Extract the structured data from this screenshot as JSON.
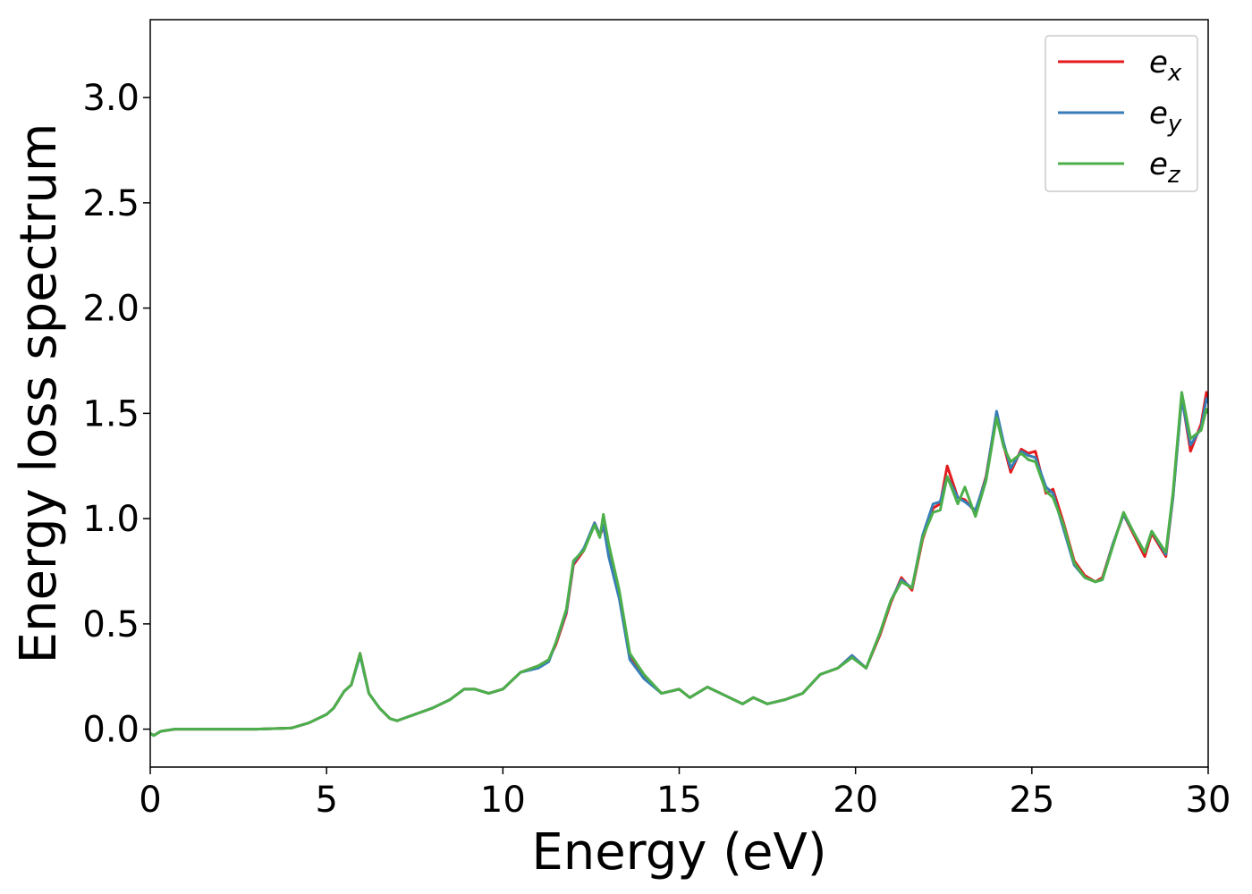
{
  "chart_data": {
    "type": "line",
    "xlabel": "Energy (eV)",
    "ylabel": "Energy loss spectrum",
    "x": [
      0,
      0.1,
      0.3,
      0.7,
      1,
      2,
      3,
      4,
      4.5,
      5,
      5.2,
      5.5,
      5.7,
      5.95,
      6.2,
      6.5,
      6.8,
      7,
      7.5,
      8,
      8.5,
      8.9,
      9.2,
      9.6,
      10,
      10.5,
      11,
      11.3,
      11.5,
      11.8,
      12,
      12.3,
      12.6,
      12.75,
      12.85,
      13,
      13.3,
      13.6,
      14,
      14.5,
      15,
      15.3,
      15.8,
      16.3,
      16.8,
      17.1,
      17.5,
      18,
      18.5,
      19,
      19.5,
      19.9,
      20.3,
      20.7,
      21,
      21.3,
      21.6,
      21.9,
      22.2,
      22.4,
      22.6,
      22.9,
      23.1,
      23.4,
      23.7,
      24,
      24.2,
      24.4,
      24.7,
      24.9,
      25.1,
      25.4,
      25.6,
      25.9,
      26.2,
      26.5,
      26.8,
      27,
      27.3,
      27.6,
      27.9,
      28.2,
      28.4,
      28.8,
      29,
      29.25,
      29.5,
      29.8,
      29.95,
      30
    ],
    "series": [
      {
        "name": "ex",
        "color": "#e41a1c",
        "values": [
          -0.02,
          -0.03,
          -0.01,
          0,
          0,
          0,
          0,
          0.005,
          0.03,
          0.07,
          0.1,
          0.18,
          0.21,
          0.36,
          0.17,
          0.1,
          0.05,
          0.04,
          0.07,
          0.1,
          0.14,
          0.19,
          0.19,
          0.17,
          0.19,
          0.27,
          0.3,
          0.33,
          0.4,
          0.55,
          0.78,
          0.85,
          0.98,
          0.92,
          0.96,
          0.85,
          0.65,
          0.35,
          0.25,
          0.17,
          0.19,
          0.15,
          0.2,
          0.16,
          0.12,
          0.15,
          0.12,
          0.14,
          0.17,
          0.26,
          0.29,
          0.35,
          0.29,
          0.45,
          0.6,
          0.72,
          0.66,
          0.9,
          1.05,
          1.07,
          1.25,
          1.1,
          1.09,
          1.03,
          1.2,
          1.5,
          1.35,
          1.22,
          1.33,
          1.31,
          1.32,
          1.12,
          1.14,
          0.98,
          0.8,
          0.73,
          0.7,
          0.72,
          0.88,
          1.02,
          0.92,
          0.82,
          0.93,
          0.82,
          1.1,
          1.58,
          1.32,
          1.45,
          1.6,
          1.55
        ]
      },
      {
        "name": "ey",
        "color": "#377eb8",
        "values": [
          -0.02,
          -0.03,
          -0.01,
          0,
          0,
          0,
          0,
          0.005,
          0.03,
          0.07,
          0.1,
          0.18,
          0.21,
          0.35,
          0.17,
          0.1,
          0.05,
          0.04,
          0.07,
          0.1,
          0.14,
          0.19,
          0.19,
          0.17,
          0.19,
          0.27,
          0.29,
          0.32,
          0.41,
          0.56,
          0.79,
          0.86,
          0.98,
          0.92,
          0.97,
          0.82,
          0.62,
          0.33,
          0.24,
          0.17,
          0.19,
          0.15,
          0.2,
          0.16,
          0.12,
          0.15,
          0.12,
          0.14,
          0.17,
          0.26,
          0.29,
          0.35,
          0.29,
          0.46,
          0.61,
          0.71,
          0.67,
          0.92,
          1.07,
          1.08,
          1.2,
          1.1,
          1.08,
          1.04,
          1.19,
          1.51,
          1.36,
          1.24,
          1.32,
          1.3,
          1.29,
          1.15,
          1.12,
          0.95,
          0.78,
          0.72,
          0.7,
          0.71,
          0.88,
          1.02,
          0.93,
          0.84,
          0.94,
          0.83,
          1.1,
          1.57,
          1.35,
          1.43,
          1.57,
          1.55
        ]
      },
      {
        "name": "ez",
        "color": "#4daf4a",
        "values": [
          -0.02,
          -0.03,
          -0.01,
          0,
          0,
          0,
          0,
          0.005,
          0.03,
          0.07,
          0.1,
          0.18,
          0.21,
          0.36,
          0.17,
          0.1,
          0.05,
          0.04,
          0.07,
          0.1,
          0.14,
          0.19,
          0.19,
          0.17,
          0.19,
          0.27,
          0.3,
          0.33,
          0.41,
          0.57,
          0.8,
          0.85,
          0.97,
          0.91,
          1.02,
          0.88,
          0.66,
          0.36,
          0.26,
          0.17,
          0.19,
          0.15,
          0.2,
          0.16,
          0.12,
          0.15,
          0.12,
          0.14,
          0.17,
          0.26,
          0.29,
          0.34,
          0.29,
          0.46,
          0.61,
          0.7,
          0.67,
          0.91,
          1.03,
          1.04,
          1.2,
          1.07,
          1.15,
          1.01,
          1.18,
          1.48,
          1.34,
          1.27,
          1.31,
          1.28,
          1.27,
          1.13,
          1.1,
          0.97,
          0.79,
          0.72,
          0.7,
          0.71,
          0.87,
          1.03,
          0.93,
          0.84,
          0.94,
          0.84,
          1.12,
          1.6,
          1.38,
          1.42,
          1.52,
          1.5
        ]
      }
    ],
    "xlim": [
      0,
      30
    ],
    "xticks": [
      0,
      5,
      10,
      15,
      20,
      25,
      30
    ],
    "ylim": [
      -0.18,
      3.37
    ],
    "yticks": [
      {
        "value": 0,
        "label": "0.0"
      },
      0.5,
      {
        "value": 1,
        "label": "1.0"
      },
      1.5,
      {
        "value": 2,
        "label": "2.0"
      },
      2.5,
      {
        "value": 3,
        "label": "3.0"
      }
    ],
    "grid": false,
    "legend": "upper right"
  }
}
